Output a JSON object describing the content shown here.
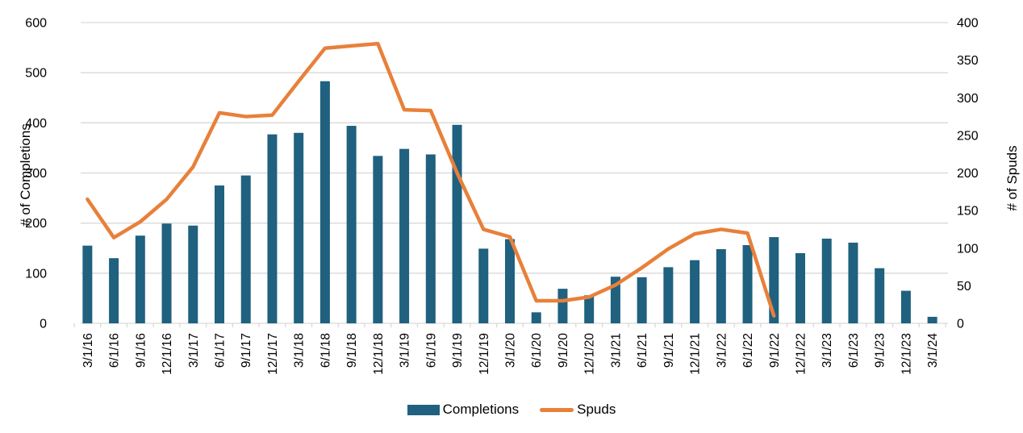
{
  "chart_data": {
    "type": "bar+line combo",
    "categories": [
      "3/1/16",
      "6/1/16",
      "9/1/16",
      "12/1/16",
      "3/1/17",
      "6/1/17",
      "9/1/17",
      "12/1/17",
      "3/1/18",
      "6/1/18",
      "9/1/18",
      "12/1/18",
      "3/1/19",
      "6/1/19",
      "9/1/19",
      "12/1/19",
      "3/1/20",
      "6/1/20",
      "9/1/20",
      "12/1/20",
      "3/1/21",
      "6/1/21",
      "9/1/21",
      "12/1/21",
      "3/1/22",
      "6/1/22",
      "9/1/22",
      "12/1/22",
      "3/1/23",
      "6/1/23",
      "9/1/23",
      "12/1/23",
      "3/1/24"
    ],
    "series": [
      {
        "name": "Completions",
        "type": "bar",
        "axis": "left",
        "color": "#1F617F",
        "values": [
          155,
          130,
          175,
          199,
          195,
          275,
          295,
          377,
          380,
          483,
          394,
          334,
          348,
          337,
          396,
          149,
          168,
          22,
          69,
          56,
          93,
          92,
          112,
          126,
          148,
          156,
          172,
          140,
          169,
          161,
          110,
          65,
          13
        ]
      },
      {
        "name": "Spuds",
        "type": "line",
        "axis": "right",
        "color": "#E8803A",
        "values": [
          165,
          114,
          135,
          165,
          208,
          280,
          275,
          277,
          322,
          366,
          369,
          372,
          284,
          283,
          200,
          125,
          115,
          30,
          30,
          35,
          51,
          74,
          99,
          119,
          125,
          120,
          10,
          null,
          null,
          null,
          null,
          null,
          null
        ]
      }
    ],
    "left_axis": {
      "title": "# of Completions",
      "min": 0,
      "max": 600,
      "step": 100,
      "tick_labels": [
        "0",
        "100",
        "200",
        "300",
        "400",
        "500",
        "600"
      ]
    },
    "right_axis": {
      "title": "# of Spuds",
      "min": 0,
      "max": 400,
      "step": 50,
      "tick_labels": [
        "0",
        "50",
        "100",
        "150",
        "200",
        "250",
        "300",
        "350",
        "400"
      ]
    },
    "legend": {
      "position": "bottom",
      "entries": [
        "Completions",
        "Spuds"
      ]
    },
    "grid": true,
    "grid_color": "#D9D9D9",
    "text_color": "#000000",
    "background": "#FFFFFF"
  }
}
